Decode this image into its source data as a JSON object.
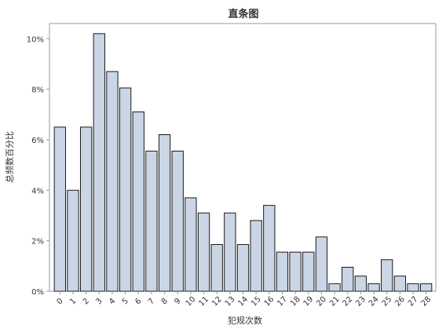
{
  "chart_data": {
    "type": "bar",
    "title": "直条图",
    "xlabel": "犯规次数",
    "ylabel": "总频数百分比",
    "ylim": [
      0,
      10.6
    ],
    "yticks": [
      "0%",
      "2%",
      "4%",
      "6%",
      "8%",
      "10%"
    ],
    "ytick_values": [
      0,
      2,
      4,
      6,
      8,
      10
    ],
    "categories": [
      "0",
      "1",
      "2",
      "3",
      "4",
      "5",
      "6",
      "7",
      "8",
      "9",
      "10",
      "11",
      "12",
      "13",
      "14",
      "15",
      "16",
      "17",
      "18",
      "19",
      "20",
      "21",
      "22",
      "23",
      "24",
      "25",
      "26",
      "27",
      "28"
    ],
    "values": [
      6.5,
      4.0,
      6.5,
      10.2,
      8.7,
      8.05,
      7.1,
      5.55,
      6.2,
      5.55,
      3.7,
      3.1,
      1.85,
      3.1,
      1.85,
      2.8,
      3.4,
      1.55,
      1.55,
      1.55,
      2.15,
      0.3,
      0.95,
      0.6,
      0.3,
      1.25,
      0.6,
      0.3,
      0.3
    ],
    "grid": false,
    "legend": "none",
    "colors": {
      "bar_fill": "#cad5e5",
      "bar_stroke": "#1a1a1a",
      "frame": "#999999"
    }
  }
}
